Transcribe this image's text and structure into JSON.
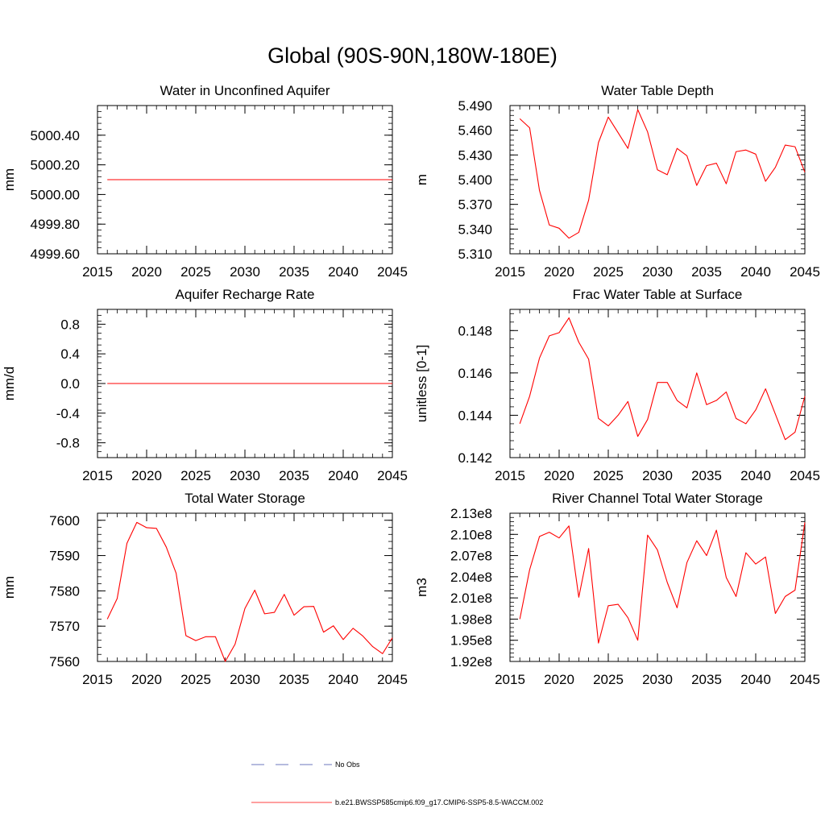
{
  "title": "Global (90S-90N,180W-180E)",
  "legend": {
    "items": [
      {
        "label": "No Obs",
        "color": "#3b4ba8",
        "dash": true
      },
      {
        "label": "b.e21.BWSSP585cmip6.f09_g17.CMIP6-SSP5-8.5-WACCM.002",
        "color": "#ff0000",
        "dash": false
      }
    ]
  },
  "chart_data": [
    {
      "type": "line",
      "title": "Water in Unconfined Aquifer",
      "ylabel": "mm",
      "xlim": [
        2015,
        2045
      ],
      "ylim": [
        4999.6,
        5000.6
      ],
      "xticks": [
        2015,
        2020,
        2025,
        2030,
        2035,
        2040,
        2045
      ],
      "yticks": [
        4999.6,
        4999.8,
        5000.0,
        5000.2,
        5000.4
      ],
      "ytick_labels": [
        "4999.60",
        "4999.80",
        "5000.00",
        "5000.20",
        "5000.40"
      ],
      "series": [
        {
          "color": "#ff0000",
          "x": [
            2016,
            2045
          ],
          "y": [
            5000.1,
            5000.1
          ]
        }
      ]
    },
    {
      "type": "line",
      "title": "Water Table Depth",
      "ylabel": "m",
      "xlim": [
        2015,
        2045
      ],
      "ylim": [
        5.31,
        5.49
      ],
      "xticks": [
        2015,
        2020,
        2025,
        2030,
        2035,
        2040,
        2045
      ],
      "yticks": [
        5.31,
        5.34,
        5.37,
        5.4,
        5.43,
        5.46,
        5.49
      ],
      "ytick_labels": [
        "5.310",
        "5.340",
        "5.370",
        "5.400",
        "5.430",
        "5.460",
        "5.490"
      ],
      "series": [
        {
          "color": "#ff0000",
          "x": [
            2016,
            2017,
            2018,
            2019,
            2020,
            2021,
            2022,
            2023,
            2024,
            2025,
            2026,
            2027,
            2028,
            2029,
            2030,
            2031,
            2032,
            2033,
            2034,
            2035,
            2036,
            2037,
            2038,
            2039,
            2040,
            2041,
            2042,
            2043,
            2044,
            2045
          ],
          "y": [
            5.474,
            5.463,
            5.387,
            5.345,
            5.341,
            5.329,
            5.336,
            5.375,
            5.445,
            5.476,
            5.457,
            5.438,
            5.485,
            5.458,
            5.412,
            5.406,
            5.438,
            5.429,
            5.393,
            5.417,
            5.42,
            5.395,
            5.434,
            5.436,
            5.431,
            5.398,
            5.415,
            5.442,
            5.44,
            5.409
          ]
        }
      ]
    },
    {
      "type": "line",
      "title": "Aquifer Recharge Rate",
      "ylabel": "mm/d",
      "xlim": [
        2015,
        2045
      ],
      "ylim": [
        -1.0,
        1.0
      ],
      "xticks": [
        2015,
        2020,
        2025,
        2030,
        2035,
        2040,
        2045
      ],
      "yticks": [
        -0.8,
        -0.4,
        0.0,
        0.4,
        0.8
      ],
      "ytick_labels": [
        "-0.8",
        "-0.4",
        "0.0",
        "0.4",
        "0.8"
      ],
      "series": [
        {
          "color": "#ff0000",
          "x": [
            2016,
            2045
          ],
          "y": [
            0.0,
            0.0
          ]
        }
      ]
    },
    {
      "type": "line",
      "title": "Frac Water Table at Surface",
      "ylabel": "unitless [0-1]",
      "xlim": [
        2015,
        2045
      ],
      "ylim": [
        0.142,
        0.149
      ],
      "xticks": [
        2015,
        2020,
        2025,
        2030,
        2035,
        2040,
        2045
      ],
      "yticks": [
        0.142,
        0.144,
        0.146,
        0.148
      ],
      "ytick_labels": [
        "0.142",
        "0.144",
        "0.146",
        "0.148"
      ],
      "series": [
        {
          "color": "#ff0000",
          "x": [
            2016,
            2017,
            2018,
            2019,
            2020,
            2021,
            2022,
            2023,
            2024,
            2025,
            2026,
            2027,
            2028,
            2029,
            2030,
            2031,
            2032,
            2033,
            2034,
            2035,
            2036,
            2037,
            2038,
            2039,
            2040,
            2041,
            2042,
            2043,
            2044,
            2045
          ],
          "y": [
            0.1436,
            0.1449,
            0.1467,
            0.14775,
            0.1479,
            0.1486,
            0.14745,
            0.14665,
            0.14385,
            0.1435,
            0.144,
            0.14465,
            0.143,
            0.1438,
            0.14555,
            0.14555,
            0.1447,
            0.14435,
            0.146,
            0.1445,
            0.1447,
            0.1451,
            0.14385,
            0.1436,
            0.14425,
            0.14525,
            0.14405,
            0.14285,
            0.1432,
            0.1449
          ]
        }
      ]
    },
    {
      "type": "line",
      "title": "Total Water Storage",
      "ylabel": "mm",
      "xlim": [
        2015,
        2045
      ],
      "ylim": [
        7560,
        7602
      ],
      "xticks": [
        2015,
        2020,
        2025,
        2030,
        2035,
        2040,
        2045
      ],
      "yticks": [
        7560,
        7570,
        7580,
        7590,
        7600
      ],
      "ytick_labels": [
        "7560",
        "7570",
        "7580",
        "7590",
        "7600"
      ],
      "series": [
        {
          "color": "#ff0000",
          "x": [
            2016,
            2017,
            2018,
            2019,
            2020,
            2021,
            2022,
            2023,
            2024,
            2025,
            2026,
            2027,
            2028,
            2029,
            2030,
            2031,
            2032,
            2033,
            2034,
            2035,
            2036,
            2037,
            2038,
            2039,
            2040,
            2041,
            2042,
            2043,
            2044,
            2045
          ],
          "y": [
            7572.0,
            7577.8,
            7593.5,
            7599.4,
            7597.9,
            7597.7,
            7592.4,
            7585.0,
            7567.3,
            7565.9,
            7567.0,
            7567.0,
            7560.0,
            7564.9,
            7575.0,
            7580.2,
            7573.5,
            7573.9,
            7579.0,
            7573.1,
            7575.5,
            7575.6,
            7568.3,
            7570.1,
            7566.2,
            7569.4,
            7567.2,
            7564.2,
            7562.2,
            7566.7
          ]
        }
      ]
    },
    {
      "type": "line",
      "title": "River Channel Total Water Storage",
      "ylabel": "m3",
      "xlim": [
        2015,
        2045
      ],
      "ylim": [
        192000000.0,
        213000000.0
      ],
      "xticks": [
        2015,
        2020,
        2025,
        2030,
        2035,
        2040,
        2045
      ],
      "yticks": [
        192000000.0,
        195000000.0,
        198000000.0,
        201000000.0,
        204000000.0,
        207000000.0,
        210000000.0,
        213000000.0
      ],
      "ytick_labels": [
        "1.92e8",
        "1.95e8",
        "1.98e8",
        "2.01e8",
        "2.04e8",
        "2.07e8",
        "2.10e8",
        "2.13e8"
      ],
      "series": [
        {
          "color": "#ff0000",
          "x": [
            2016,
            2017,
            2018,
            2019,
            2020,
            2021,
            2022,
            2023,
            2024,
            2025,
            2026,
            2027,
            2028,
            2029,
            2030,
            2031,
            2032,
            2033,
            2034,
            2035,
            2036,
            2037,
            2038,
            2039,
            2040,
            2041,
            2042,
            2043,
            2044,
            2045
          ],
          "y": [
            198000000.0,
            205000000.0,
            209700000.0,
            210300000.0,
            209500000.0,
            211200000.0,
            201100000.0,
            208000000.0,
            194600000.0,
            199900000.0,
            200100000.0,
            198200000.0,
            195000000.0,
            209900000.0,
            207800000.0,
            203200000.0,
            199600000.0,
            206000000.0,
            209100000.0,
            207000000.0,
            210600000.0,
            203900000.0,
            201200000.0,
            207400000.0,
            205800000.0,
            206800000.0,
            198800000.0,
            201200000.0,
            202100000.0,
            211700000.0
          ]
        }
      ]
    }
  ]
}
